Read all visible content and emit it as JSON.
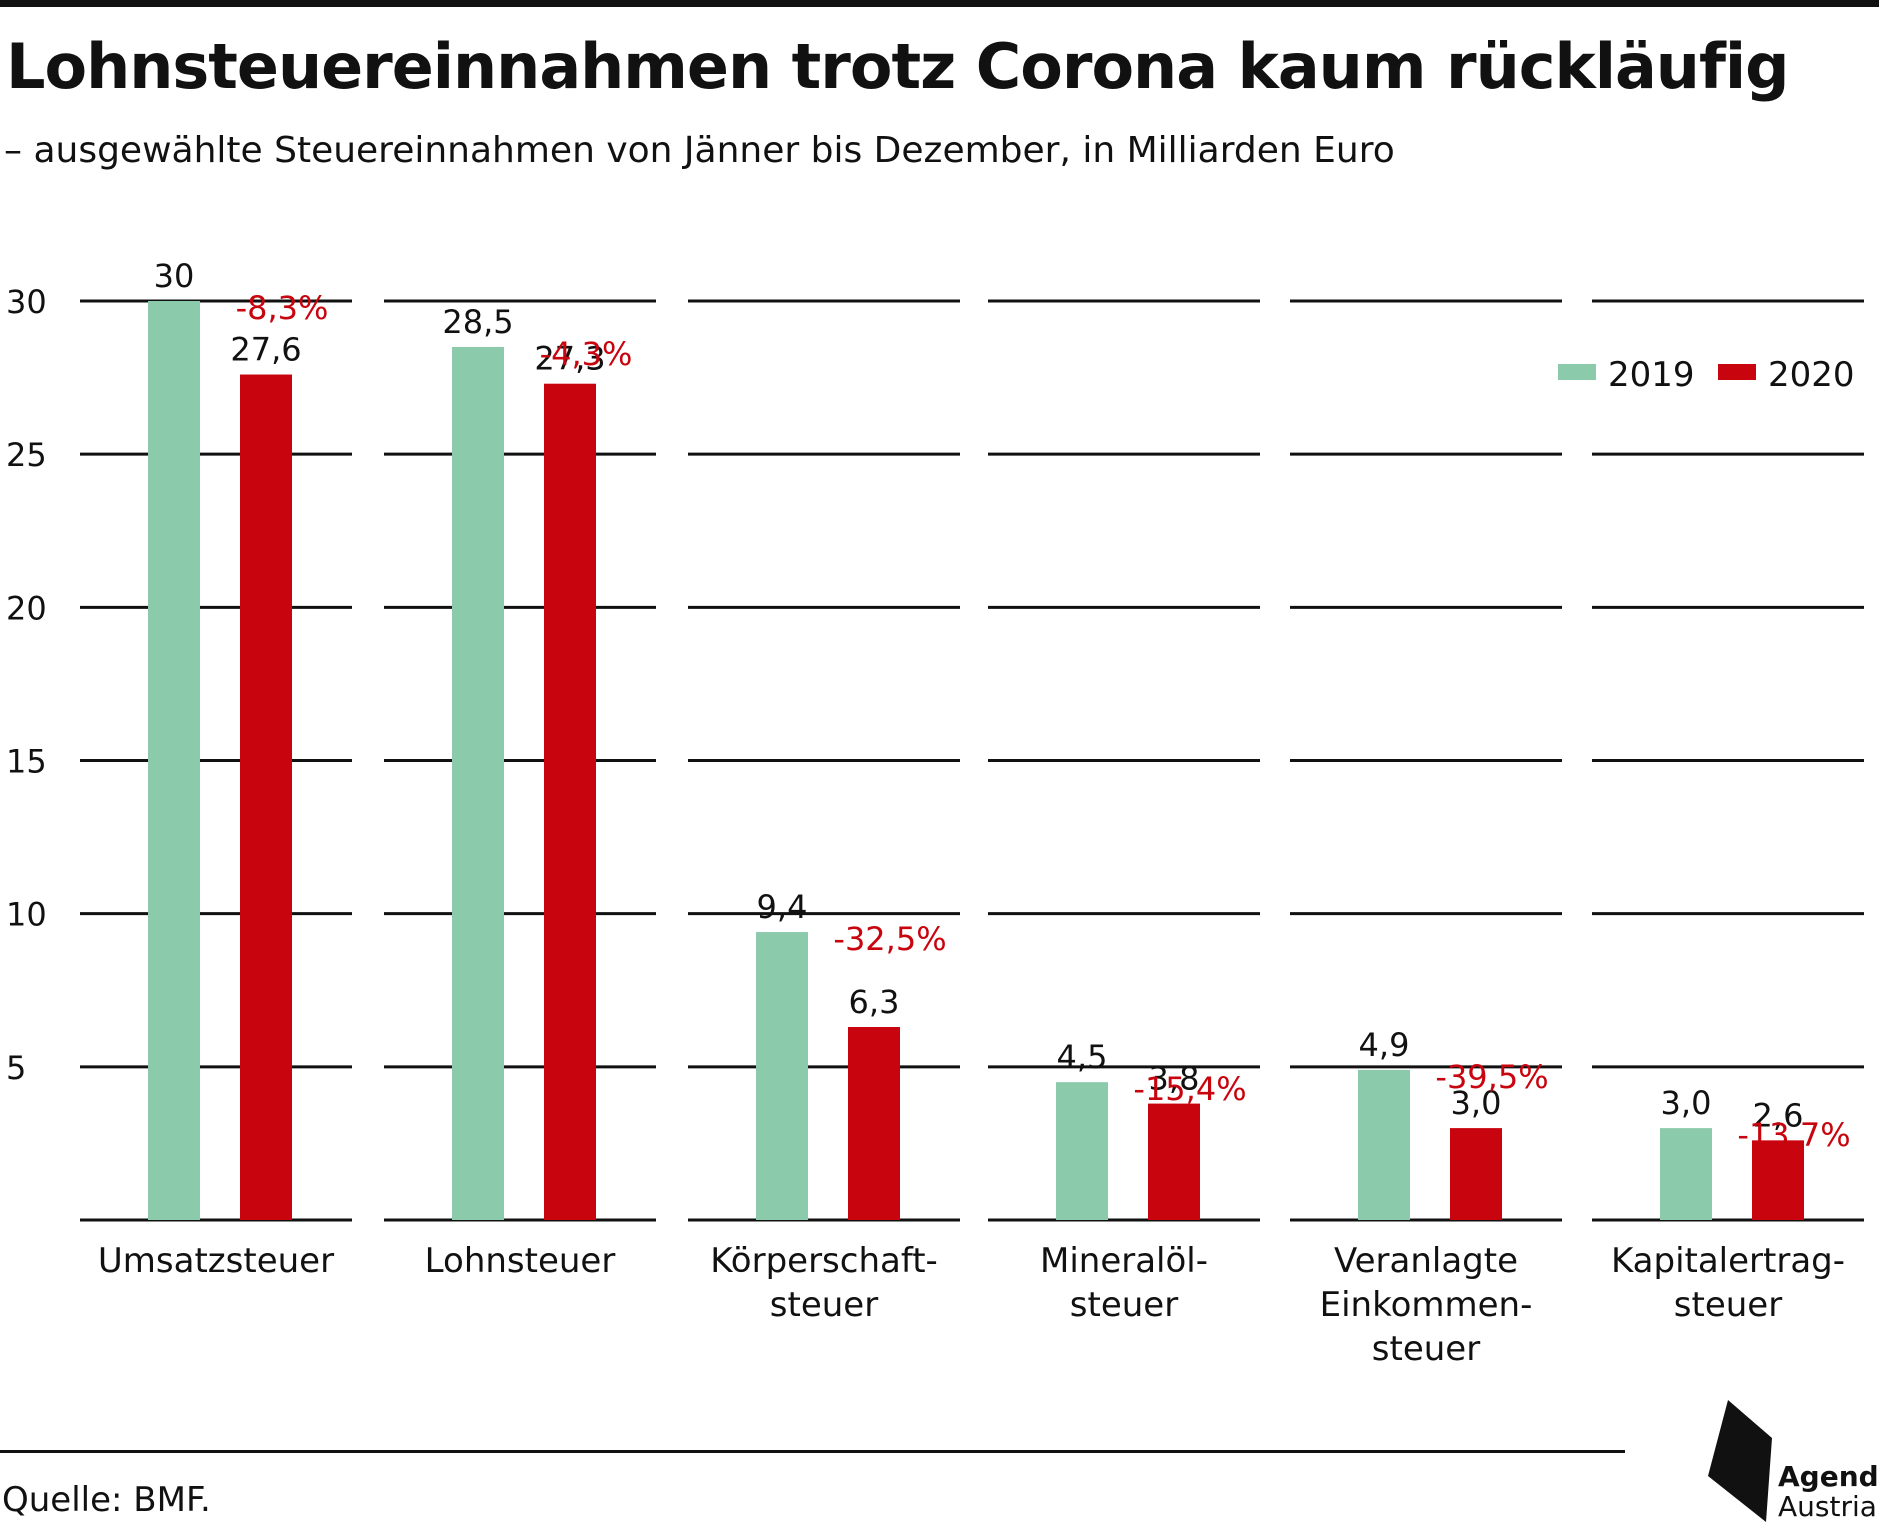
{
  "header": {
    "title": "Lohnsteuereinnahmen trotz Corona kaum rückläufig",
    "subtitle": "– ausgewählte Steuereinnahmen von Jänner bis Dezember, in Milliarden Euro"
  },
  "footer": {
    "source": "Quelle: BMF."
  },
  "logo": {
    "line1": "Agenda",
    "line2": "Austria"
  },
  "chart_data": {
    "type": "bar",
    "title": "Lohnsteuereinnahmen trotz Corona kaum rückläufig",
    "subtitle": "– ausgewählte Steuereinnahmen von Jänner bis Dezember, in Milliarden Euro",
    "categories": [
      [
        "Umsatzsteuer"
      ],
      [
        "Lohnsteuer"
      ],
      [
        "Körperschaft-",
        "steuer"
      ],
      [
        "Mineralöl-",
        "steuer"
      ],
      [
        "Veranlagte",
        "Einkommen-",
        "steuer"
      ],
      [
        "Kapitalertrag-",
        "steuer"
      ]
    ],
    "series": [
      {
        "name": "2019",
        "color": "#8ccaac",
        "values": [
          30,
          28.5,
          9.4,
          4.5,
          4.9,
          3.0
        ],
        "labels": [
          "30",
          "28,5",
          "9,4",
          "4,5",
          "4,9",
          "3,0"
        ]
      },
      {
        "name": "2020",
        "color": "#c8040e",
        "values": [
          27.6,
          27.3,
          6.3,
          3.8,
          3.0,
          2.6
        ],
        "labels": [
          "27,6",
          "27,3",
          "6,3",
          "3,8",
          "3,0",
          "2,6"
        ]
      }
    ],
    "change_labels": [
      "-8,3%",
      "-4,3%",
      "-32,5%",
      "-15,4%",
      "-39,5%",
      "-13,7%"
    ],
    "change_color": "#c8040e",
    "yticks": [
      5,
      10,
      15,
      20,
      25,
      30
    ],
    "ylim": [
      0,
      30
    ],
    "grid": true,
    "legend": "top-right",
    "xlabel": "",
    "ylabel": ""
  }
}
